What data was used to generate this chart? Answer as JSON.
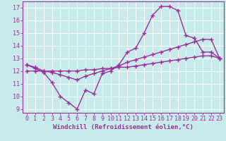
{
  "background_color": "#c8eaea",
  "grid_color": "#ffffff",
  "line_color": "#993399",
  "line_width": 1.0,
  "marker": "+",
  "marker_size": 4,
  "marker_edge_width": 1.0,
  "xlabel": "Windchill (Refroidissement éolien,°C)",
  "xlabel_fontsize": 6.5,
  "tick_fontsize": 6.0,
  "xlim": [
    -0.5,
    23.5
  ],
  "ylim": [
    8.7,
    17.5
  ],
  "yticks": [
    9,
    10,
    11,
    12,
    13,
    14,
    15,
    16,
    17
  ],
  "xticks": [
    0,
    1,
    2,
    3,
    4,
    5,
    6,
    7,
    8,
    9,
    10,
    11,
    12,
    13,
    14,
    15,
    16,
    17,
    18,
    19,
    20,
    21,
    22,
    23
  ],
  "series1_x": [
    0,
    1,
    2,
    3,
    4,
    5,
    6,
    7,
    8,
    9,
    10,
    11,
    12,
    13,
    14,
    15,
    16,
    17,
    18,
    19,
    20,
    21,
    22,
    23
  ],
  "series1_y": [
    12.5,
    12.2,
    11.9,
    11.1,
    10.0,
    9.5,
    9.0,
    10.5,
    10.2,
    11.8,
    12.0,
    12.5,
    13.5,
    13.8,
    15.0,
    16.4,
    17.1,
    17.1,
    16.8,
    14.8,
    14.6,
    13.5,
    13.5,
    13.0
  ],
  "series2_x": [
    0,
    1,
    2,
    3,
    4,
    5,
    6,
    7,
    8,
    9,
    10,
    11,
    12,
    13,
    14,
    15,
    16,
    17,
    18,
    19,
    20,
    21,
    22,
    23
  ],
  "series2_y": [
    12.5,
    12.3,
    12.0,
    11.9,
    11.7,
    11.5,
    11.3,
    11.6,
    11.8,
    12.0,
    12.2,
    12.4,
    12.7,
    12.9,
    13.1,
    13.3,
    13.5,
    13.7,
    13.9,
    14.1,
    14.3,
    14.5,
    14.5,
    13.0
  ],
  "series3_x": [
    0,
    1,
    2,
    3,
    4,
    5,
    6,
    7,
    8,
    9,
    10,
    11,
    12,
    13,
    14,
    15,
    16,
    17,
    18,
    19,
    20,
    21,
    22,
    23
  ],
  "series3_y": [
    12.0,
    12.0,
    12.0,
    12.0,
    12.0,
    12.0,
    12.0,
    12.1,
    12.1,
    12.2,
    12.2,
    12.3,
    12.3,
    12.4,
    12.5,
    12.6,
    12.7,
    12.8,
    12.9,
    13.0,
    13.1,
    13.2,
    13.2,
    13.0
  ],
  "font_family": "monospace"
}
